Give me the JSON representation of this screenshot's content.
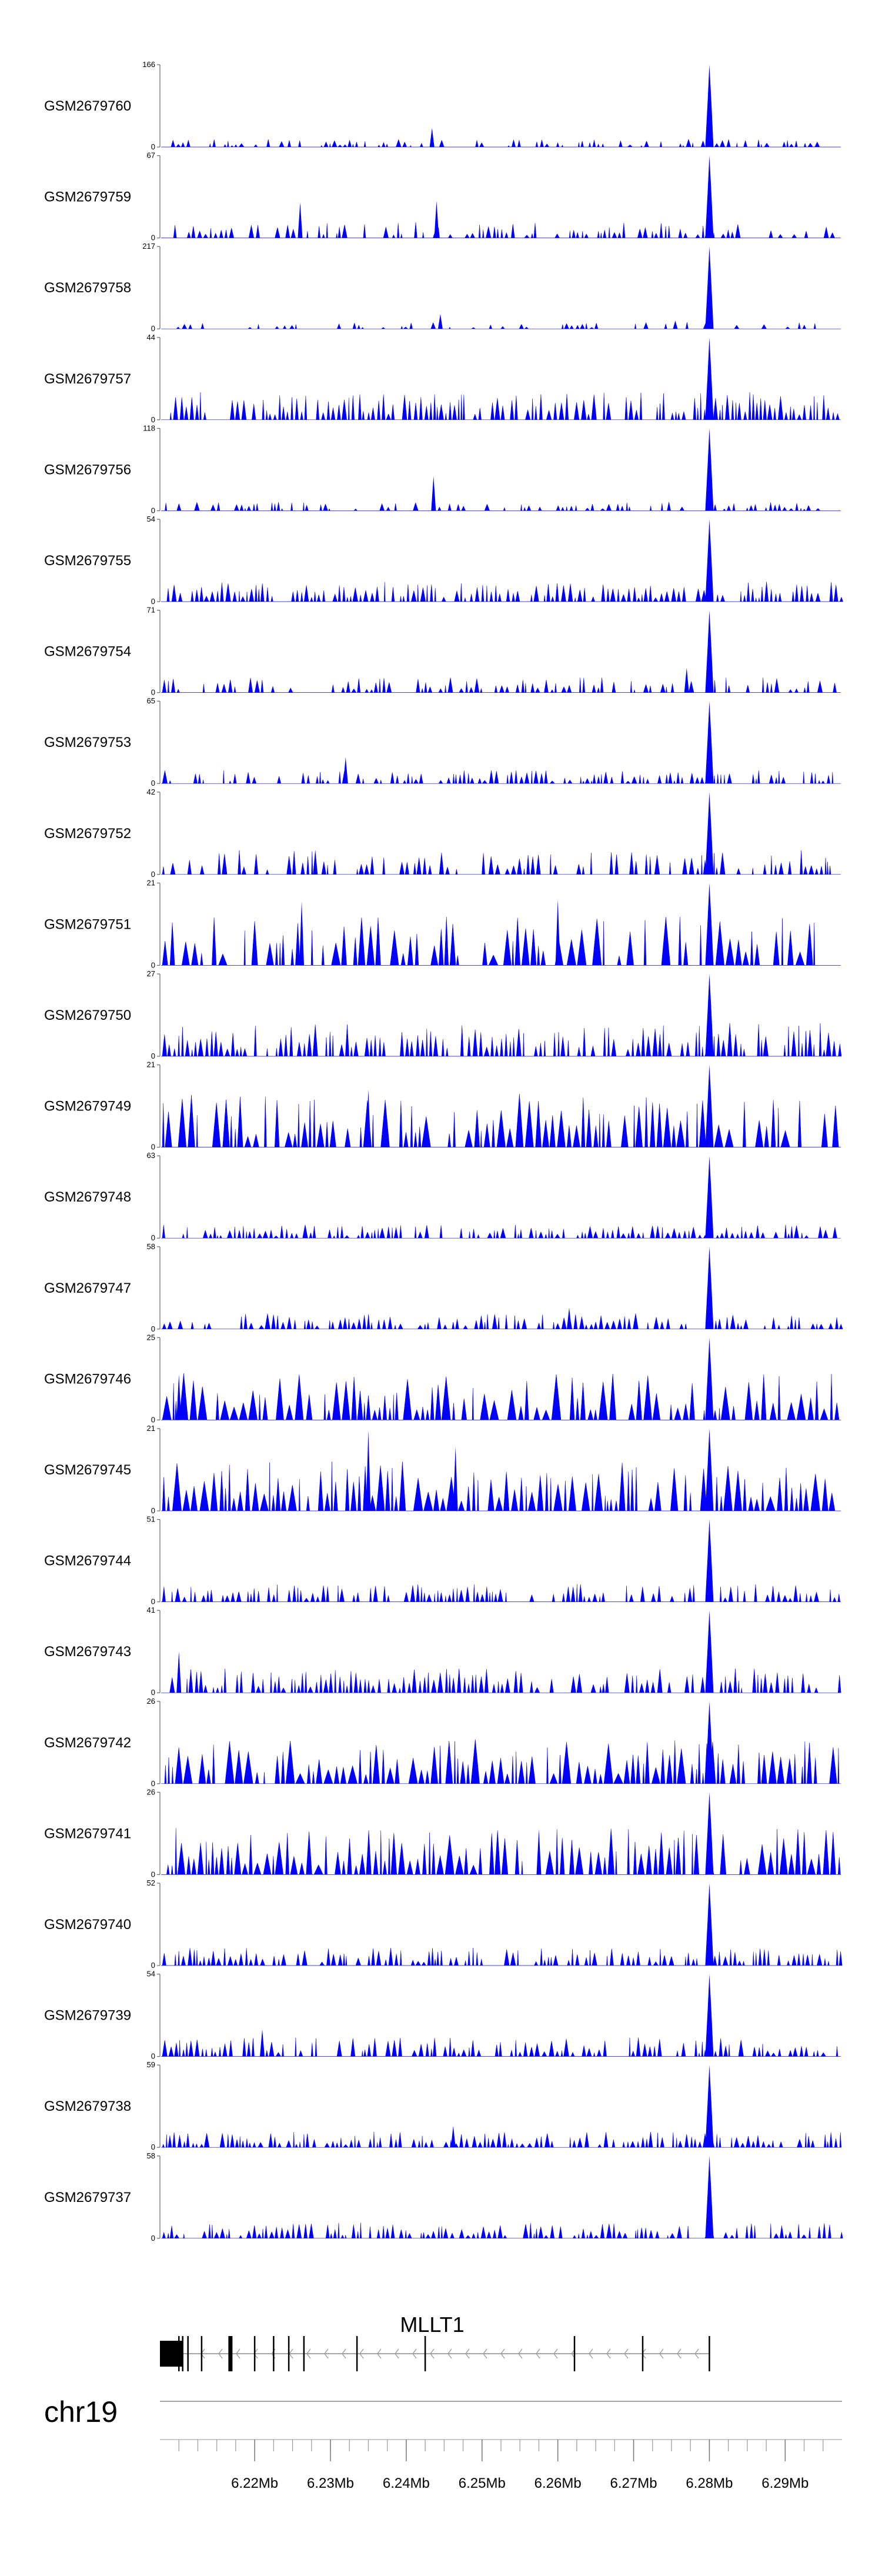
{
  "chart_data": {
    "type": "area",
    "chromosome": "chr19",
    "xlim": [
      6.2075,
      6.2975
    ],
    "x_unit": "Mb",
    "x_ticks": [
      "6.22Mb",
      "6.23Mb",
      "6.24Mb",
      "6.25Mb",
      "6.26Mb",
      "6.27Mb",
      "6.28Mb",
      "6.29Mb"
    ],
    "x_tick_values": [
      6.22,
      6.23,
      6.24,
      6.25,
      6.26,
      6.27,
      6.28,
      6.29
    ],
    "peak_position": 6.28,
    "tracks": [
      {
        "name": "GSM2679760",
        "ymax": "166",
        "peak": 1.0,
        "level": 0.07,
        "density": 0.55,
        "extra": [
          [
            6.2434,
            0.23
          ]
        ]
      },
      {
        "name": "GSM2679759",
        "ymax": "67",
        "peak": 1.0,
        "level": 0.14,
        "density": 0.6,
        "extra": [
          [
            6.226,
            0.43
          ],
          [
            6.244,
            0.45
          ]
        ]
      },
      {
        "name": "GSM2679758",
        "ymax": "217",
        "peak": 1.0,
        "level": 0.06,
        "density": 0.35,
        "extra": [
          [
            6.2445,
            0.18
          ],
          [
            6.2755,
            0.1
          ]
        ]
      },
      {
        "name": "GSM2679757",
        "ymax": "44",
        "peak": 1.0,
        "level": 0.25,
        "density": 0.75,
        "extra": []
      },
      {
        "name": "GSM2679756",
        "ymax": "118",
        "peak": 1.0,
        "level": 0.08,
        "density": 0.45,
        "extra": [
          [
            6.2436,
            0.42
          ]
        ]
      },
      {
        "name": "GSM2679755",
        "ymax": "54",
        "peak": 1.0,
        "level": 0.18,
        "density": 0.8,
        "extra": []
      },
      {
        "name": "GSM2679754",
        "ymax": "71",
        "peak": 1.0,
        "level": 0.14,
        "density": 0.55,
        "extra": [
          [
            6.277,
            0.3
          ]
        ]
      },
      {
        "name": "GSM2679753",
        "ymax": "65",
        "peak": 1.0,
        "level": 0.12,
        "density": 0.7,
        "extra": [
          [
            6.232,
            0.32
          ]
        ]
      },
      {
        "name": "GSM2679752",
        "ymax": "42",
        "peak": 1.0,
        "level": 0.22,
        "density": 0.55,
        "extra": [
          [
            6.228,
            0.3
          ]
        ]
      },
      {
        "name": "GSM2679751",
        "ymax": "21",
        "peak": 1.0,
        "level": 0.45,
        "density": 0.6,
        "extra": [
          [
            6.2262,
            0.78
          ],
          [
            6.26,
            0.8
          ]
        ]
      },
      {
        "name": "GSM2679750",
        "ymax": "27",
        "peak": 1.0,
        "level": 0.3,
        "density": 0.8,
        "extra": []
      },
      {
        "name": "GSM2679749",
        "ymax": "21",
        "peak": 1.0,
        "level": 0.48,
        "density": 0.75,
        "extra": [
          [
            6.235,
            0.7
          ]
        ]
      },
      {
        "name": "GSM2679748",
        "ymax": "63",
        "peak": 1.0,
        "level": 0.12,
        "density": 0.75,
        "extra": []
      },
      {
        "name": "GSM2679747",
        "ymax": "58",
        "peak": 1.0,
        "level": 0.14,
        "density": 0.75,
        "extra": [
          [
            6.2615,
            0.26
          ]
        ]
      },
      {
        "name": "GSM2679746",
        "ymax": "25",
        "peak": 1.0,
        "level": 0.42,
        "density": 0.8,
        "extra": [
          [
            6.21,
            0.55
          ]
        ]
      },
      {
        "name": "GSM2679745",
        "ymax": "21",
        "peak": 1.0,
        "level": 0.45,
        "density": 0.8,
        "extra": [
          [
            6.235,
            0.98
          ],
          [
            6.2465,
            0.78
          ]
        ]
      },
      {
        "name": "GSM2679744",
        "ymax": "51",
        "peak": 1.0,
        "level": 0.16,
        "density": 0.75,
        "extra": []
      },
      {
        "name": "GSM2679743",
        "ymax": "41",
        "peak": 1.0,
        "level": 0.22,
        "density": 0.75,
        "extra": [
          [
            6.21,
            0.5
          ]
        ]
      },
      {
        "name": "GSM2679742",
        "ymax": "26",
        "peak": 1.0,
        "level": 0.4,
        "density": 0.85,
        "extra": []
      },
      {
        "name": "GSM2679741",
        "ymax": "26",
        "peak": 1.0,
        "level": 0.42,
        "density": 0.85,
        "extra": [
          [
            6.2575,
            0.55
          ]
        ]
      },
      {
        "name": "GSM2679740",
        "ymax": "52",
        "peak": 1.0,
        "level": 0.16,
        "density": 0.75,
        "extra": []
      },
      {
        "name": "GSM2679739",
        "ymax": "54",
        "peak": 1.0,
        "level": 0.17,
        "density": 0.75,
        "extra": [
          [
            6.221,
            0.33
          ]
        ]
      },
      {
        "name": "GSM2679738",
        "ymax": "59",
        "peak": 1.0,
        "level": 0.14,
        "density": 0.8,
        "extra": [
          [
            6.2462,
            0.26
          ]
        ]
      },
      {
        "name": "GSM2679737",
        "ymax": "58",
        "peak": 1.0,
        "level": 0.14,
        "density": 0.75,
        "extra": []
      }
    ],
    "gene": {
      "name": "MLLT1",
      "start": 6.2075,
      "end": 6.28,
      "strand": "-",
      "exons": [
        6.2075,
        6.21,
        6.2105,
        6.2112,
        6.213,
        6.2168,
        6.22,
        6.2225,
        6.2245,
        6.2265,
        6.2335,
        6.2425,
        6.2622,
        6.2712,
        6.28
      ]
    }
  }
}
